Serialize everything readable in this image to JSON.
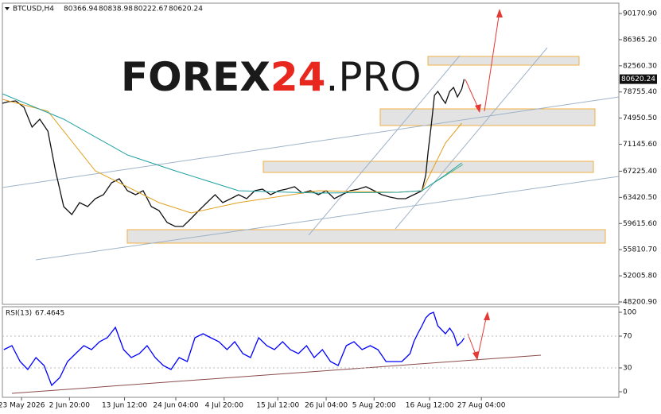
{
  "chart_data": [
    {
      "type": "line",
      "symbol": "BTCUSD,H4",
      "ohlc": {
        "open": 80366.94,
        "high": 80838.98,
        "low": 80222.67,
        "close": 80620.24
      },
      "watermark": {
        "part1": "FOREX",
        "part2": "24",
        "part3": ".PRO"
      },
      "xlim": [
        -4,
        124.7
      ],
      "xticks": [
        {
          "value": 0,
          "label": "23 May 2026"
        },
        {
          "value": 10,
          "label": "2 Jun 20:00"
        },
        {
          "value": 21.5,
          "label": "13 Jun 12:00"
        },
        {
          "value": 32.2,
          "label": "24 Jun 04:00"
        },
        {
          "value": 42.3,
          "label": "4 Jul 20:00"
        },
        {
          "value": 53.5,
          "label": "15 Jul 12:00"
        },
        {
          "value": 63.6,
          "label": "26 Jul 04:00"
        },
        {
          "value": 73.6,
          "label": "5 Aug 20:00"
        },
        {
          "value": 85.2,
          "label": "16 Aug 12:00"
        },
        {
          "value": 96,
          "label": "27 Aug 04:00"
        }
      ],
      "ylim": [
        47854,
        91674
      ],
      "yticks": [
        {
          "value": 90170.9,
          "label": "90170.90"
        },
        {
          "value": 86365.2,
          "label": "86365.20"
        },
        {
          "value": 82560.3,
          "label": "82560.30"
        },
        {
          "value": 78755.4,
          "label": "78755.40"
        },
        {
          "value": 74950.5,
          "label": "74950.50"
        },
        {
          "value": 71145.6,
          "label": "71145.60"
        },
        {
          "value": 67225.4,
          "label": "67225.40"
        },
        {
          "value": 63420.5,
          "label": "63420.50"
        },
        {
          "value": 59615.6,
          "label": "59615.60"
        },
        {
          "value": 55810.7,
          "label": "55810.70"
        },
        {
          "value": 52005.8,
          "label": "52005.80"
        },
        {
          "value": 48200.9,
          "label": "48200.90"
        }
      ],
      "series": [
        {
          "color": "#111111",
          "x": [
            -4.0,
            -2.8,
            -1.2,
            0.5,
            2.2,
            3.8,
            5.5,
            7.1,
            8.8,
            10.5,
            12.1,
            13.8,
            15.4,
            17.1,
            18.8,
            20.4,
            22.1,
            23.8,
            25.4,
            27.1,
            28.7,
            30.4,
            32.1,
            33.7,
            35.4,
            37.0,
            38.7,
            40.4,
            42.0,
            43.7,
            45.3,
            47.0,
            48.7,
            50.3,
            52.0,
            53.7,
            55.3,
            57.0,
            58.6,
            60.3,
            62.0,
            63.6,
            65.3,
            66.9,
            68.6,
            70.3,
            71.9,
            73.6,
            75.2,
            76.9,
            78.6,
            80.2,
            81.9,
            83.6,
            84.4,
            84.9,
            85.5,
            86.2,
            86.9,
            87.9,
            88.5,
            89.4,
            90.2,
            91.0,
            91.9,
            92.4
          ],
          "values": [
            77108,
            77339,
            77455,
            76530,
            73640,
            74796,
            73062,
            67282,
            62080,
            60924,
            62658,
            62080,
            63236,
            63814,
            65548,
            66126,
            64392,
            63814,
            64392,
            62080,
            61502,
            59768,
            59190,
            59190,
            60346,
            61502,
            62658,
            63814,
            62658,
            63236,
            63814,
            63236,
            64392,
            64623,
            63814,
            64392,
            64623,
            64970,
            64045,
            64392,
            63814,
            64392,
            63236,
            63814,
            64392,
            64623,
            64970,
            64392,
            63814,
            63467,
            63236,
            63236,
            63814,
            64392,
            66704,
            70172,
            73640,
            78264,
            78842,
            77686,
            77108,
            78842,
            79420,
            78033,
            79189,
            80620.24
          ]
        },
        {
          "color": "#e0a020",
          "x": [
            -4,
            5.5,
            15.4,
            28.7,
            35.4,
            45.3,
            62.0,
            78.6,
            83.6,
            88.5,
            91.9
          ],
          "values": [
            77686,
            75952,
            67282,
            62658,
            61155,
            62658,
            64392,
            64161,
            64392,
            71328,
            74218
          ]
        },
        {
          "color": "#20a0a0",
          "x": [
            -4,
            8.8,
            22.1,
            32.1,
            45.3,
            62.0,
            78.6,
            83.6,
            88.5,
            91.9
          ],
          "values": [
            78495,
            74796,
            69594,
            67282,
            64392,
            64045,
            64161,
            64392,
            66704,
            68438
          ]
        }
      ]
    },
    {
      "type": "line",
      "title": "RSI(13)",
      "last_value": 67.4645,
      "xlim": [
        -4,
        124.7
      ],
      "ylim": [
        -7,
        105
      ],
      "yticks": [
        100,
        70,
        30,
        0
      ],
      "series": [
        {
          "color": "#0000ff",
          "x": [
            -3.7,
            -2.0,
            -0.3,
            1.3,
            3.0,
            4.7,
            6.3,
            8.0,
            9.6,
            11.3,
            13.0,
            14.6,
            16.3,
            17.9,
            19.6,
            21.3,
            22.9,
            24.6,
            26.2,
            27.9,
            29.6,
            31.2,
            32.9,
            34.6,
            36.2,
            37.9,
            39.5,
            41.2,
            42.9,
            44.5,
            46.2,
            47.8,
            49.5,
            51.2,
            52.8,
            54.5,
            56.1,
            57.8,
            59.5,
            61.1,
            62.8,
            64.5,
            66.1,
            67.8,
            69.4,
            71.1,
            72.8,
            74.4,
            76.1,
            77.7,
            79.4,
            81.1,
            81.9,
            82.7,
            83.6,
            84.4,
            85.2,
            86.0,
            86.9,
            87.7,
            88.5,
            89.4,
            90.2,
            91.0,
            91.9,
            92.4
          ],
          "values": [
            53,
            58,
            38,
            28,
            43,
            33,
            8,
            18,
            38,
            48,
            58,
            53,
            63,
            68,
            81,
            53,
            43,
            48,
            58,
            43,
            33,
            28,
            43,
            38,
            68,
            73,
            68,
            63,
            53,
            63,
            48,
            43,
            68,
            58,
            53,
            63,
            53,
            48,
            58,
            43,
            53,
            38,
            33,
            58,
            63,
            53,
            58,
            53,
            38,
            38,
            38,
            48,
            63,
            73,
            83,
            93,
            98,
            100,
            83,
            78,
            73,
            80,
            73,
            58,
            63,
            67.4645
          ]
        }
      ]
    }
  ]
}
